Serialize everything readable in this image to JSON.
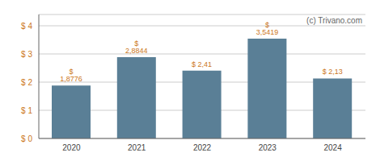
{
  "chart_data": {
    "type": "bar",
    "categories": [
      "2020",
      "2021",
      "2022",
      "2023",
      "2024"
    ],
    "values": [
      1.8776,
      2.8844,
      2.41,
      3.5419,
      2.13
    ],
    "value_labels": [
      "$ 1,8776",
      "$ 2,8844",
      "$ 2,41",
      "$ 3,5419",
      "$ 2,13"
    ],
    "color": "#5a7f96",
    "ylim": [
      0,
      4.4
    ],
    "yticks": [
      {
        "value": 0,
        "label": "$ 0"
      },
      {
        "value": 1,
        "label": "$ 1"
      },
      {
        "value": 2,
        "label": "$ 2"
      },
      {
        "value": 3,
        "label": "$ 3"
      },
      {
        "value": 4,
        "label": "$ 4"
      }
    ],
    "grid": true,
    "data_labels": true,
    "annotations": [
      "(c) Trivano.com"
    ]
  }
}
